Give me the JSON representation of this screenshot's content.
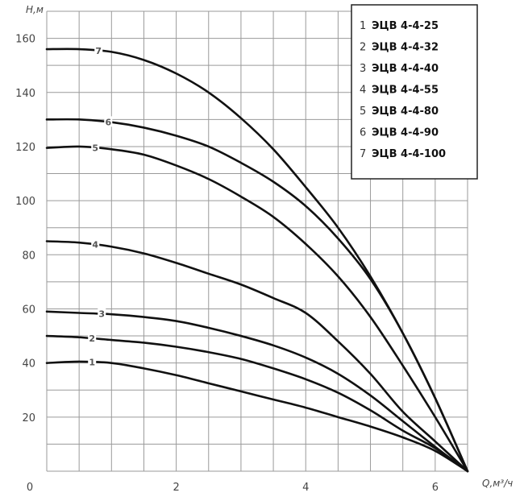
{
  "chart_data": {
    "type": "line",
    "xlabel": "Q,м³/ч",
    "ylabel": "H,м",
    "xlim": [
      0,
      6.5
    ],
    "ylim": [
      0,
      170
    ],
    "x_ticks": [
      "0",
      "2",
      "4",
      "6"
    ],
    "y_ticks": [
      "20",
      "40",
      "60",
      "80",
      "100",
      "120",
      "140",
      "160"
    ],
    "grid": true,
    "legend_position": "top-right",
    "series": [
      {
        "num": "1",
        "name": "ЭЦВ 4-4-25",
        "points": [
          [
            0,
            40
          ],
          [
            0.5,
            40.5
          ],
          [
            1,
            40
          ],
          [
            1.5,
            38
          ],
          [
            2,
            35.5
          ],
          [
            2.5,
            32.5
          ],
          [
            3,
            29.5
          ],
          [
            3.5,
            26.5
          ],
          [
            4,
            23.5
          ],
          [
            4.5,
            20
          ],
          [
            5,
            16.5
          ],
          [
            5.5,
            12.5
          ],
          [
            6,
            7.5
          ],
          [
            6.5,
            0
          ]
        ]
      },
      {
        "num": "2",
        "name": "ЭЦВ 4-4-32",
        "points": [
          [
            0,
            50
          ],
          [
            0.5,
            49.5
          ],
          [
            1,
            48.5
          ],
          [
            1.5,
            47.5
          ],
          [
            2,
            46
          ],
          [
            2.5,
            44
          ],
          [
            3,
            41.5
          ],
          [
            3.5,
            38
          ],
          [
            4,
            34
          ],
          [
            4.5,
            29
          ],
          [
            5,
            22.5
          ],
          [
            5.5,
            15
          ],
          [
            6,
            8.5
          ],
          [
            6.5,
            0
          ]
        ]
      },
      {
        "num": "3",
        "name": "ЭЦВ 4-4-40",
        "points": [
          [
            0,
            59
          ],
          [
            0.5,
            58.5
          ],
          [
            1,
            58
          ],
          [
            1.5,
            57
          ],
          [
            2,
            55.5
          ],
          [
            2.5,
            53
          ],
          [
            3,
            50
          ],
          [
            3.5,
            46.5
          ],
          [
            4,
            42
          ],
          [
            4.5,
            36
          ],
          [
            5,
            28
          ],
          [
            5.5,
            18.5
          ],
          [
            6,
            9
          ],
          [
            6.5,
            0
          ]
        ]
      },
      {
        "num": "4",
        "name": "ЭЦВ 4-4-55",
        "points": [
          [
            0,
            85
          ],
          [
            0.5,
            84.5
          ],
          [
            1,
            83
          ],
          [
            1.5,
            80.5
          ],
          [
            2,
            77
          ],
          [
            2.5,
            73
          ],
          [
            3,
            69
          ],
          [
            3.5,
            64
          ],
          [
            4,
            58.5
          ],
          [
            4.5,
            48
          ],
          [
            5,
            36
          ],
          [
            5.5,
            22
          ],
          [
            6,
            11
          ],
          [
            6.5,
            0
          ]
        ]
      },
      {
        "num": "5",
        "name": "ЭЦВ 4-4-80",
        "points": [
          [
            0,
            119.5
          ],
          [
            0.5,
            120
          ],
          [
            1,
            119
          ],
          [
            1.5,
            117
          ],
          [
            2,
            113
          ],
          [
            2.5,
            108
          ],
          [
            3,
            101.5
          ],
          [
            3.5,
            94
          ],
          [
            4,
            84
          ],
          [
            4.5,
            72
          ],
          [
            5,
            57
          ],
          [
            5.5,
            39
          ],
          [
            6,
            20
          ],
          [
            6.5,
            0
          ]
        ]
      },
      {
        "num": "6",
        "name": "ЭЦВ 4-4-90",
        "points": [
          [
            0,
            130
          ],
          [
            0.5,
            130
          ],
          [
            1,
            129
          ],
          [
            1.5,
            127
          ],
          [
            2,
            124
          ],
          [
            2.5,
            120
          ],
          [
            3,
            114
          ],
          [
            3.5,
            107
          ],
          [
            4,
            98
          ],
          [
            4.5,
            86
          ],
          [
            5,
            71
          ],
          [
            5.5,
            51
          ],
          [
            6,
            27
          ],
          [
            6.5,
            0
          ]
        ]
      },
      {
        "num": "7",
        "name": "ЭЦВ 4-4-100",
        "points": [
          [
            0,
            156
          ],
          [
            0.5,
            156
          ],
          [
            1,
            155
          ],
          [
            1.5,
            152
          ],
          [
            2,
            147
          ],
          [
            2.5,
            140
          ],
          [
            3,
            130.5
          ],
          [
            3.5,
            119
          ],
          [
            4,
            105
          ],
          [
            4.5,
            90
          ],
          [
            5,
            72
          ],
          [
            5.5,
            51
          ],
          [
            6,
            27
          ],
          [
            6.5,
            0
          ]
        ]
      }
    ]
  }
}
